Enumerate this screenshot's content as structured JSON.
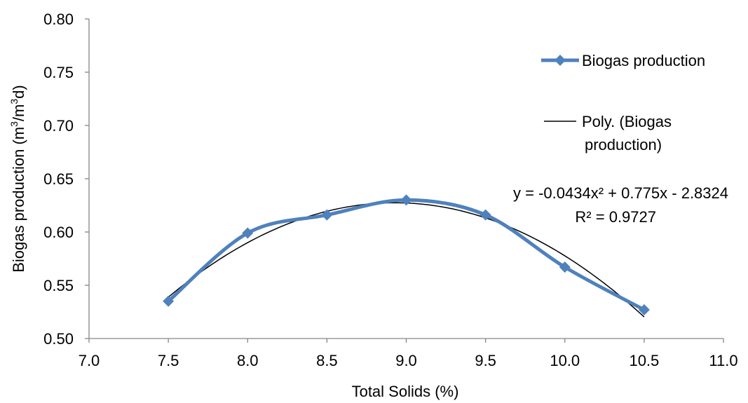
{
  "chart_data": {
    "type": "scatter",
    "xlabel": "Total Solids (%)",
    "ylabel_parts": [
      "Biogas production (m",
      "3",
      "/m",
      "3",
      "d)"
    ],
    "xlim": [
      7.0,
      11.0
    ],
    "ylim": [
      0.5,
      0.8
    ],
    "x_ticks": [
      "7.0",
      "7.5",
      "8.0",
      "8.5",
      "9.0",
      "9.5",
      "10.0",
      "10.5",
      "11.0"
    ],
    "y_ticks": [
      "0.50",
      "0.55",
      "0.60",
      "0.65",
      "0.70",
      "0.75",
      "0.80"
    ],
    "grid": false,
    "legend_position": "right",
    "series": [
      {
        "name": "Biogas production",
        "color": "#4F81BD",
        "style": "smoothed line with diamond markers",
        "x": [
          7.5,
          8.0,
          8.5,
          9.0,
          9.5,
          10.0,
          10.5
        ],
        "y": [
          0.535,
          0.599,
          0.616,
          0.63,
          0.616,
          0.567,
          0.527
        ]
      }
    ],
    "trendline": {
      "name_lines": [
        "Poly. (Biogas",
        "production)"
      ],
      "color": "#000000",
      "type": "polynomial order 2",
      "coefficients": {
        "a": -0.0434,
        "b": 0.775,
        "c": -2.8324
      },
      "x_range": [
        7.5,
        10.5
      ],
      "equation": "y = -0.0434x² + 0.775x - 2.8324",
      "r_squared": "R² = 0.9727"
    }
  }
}
